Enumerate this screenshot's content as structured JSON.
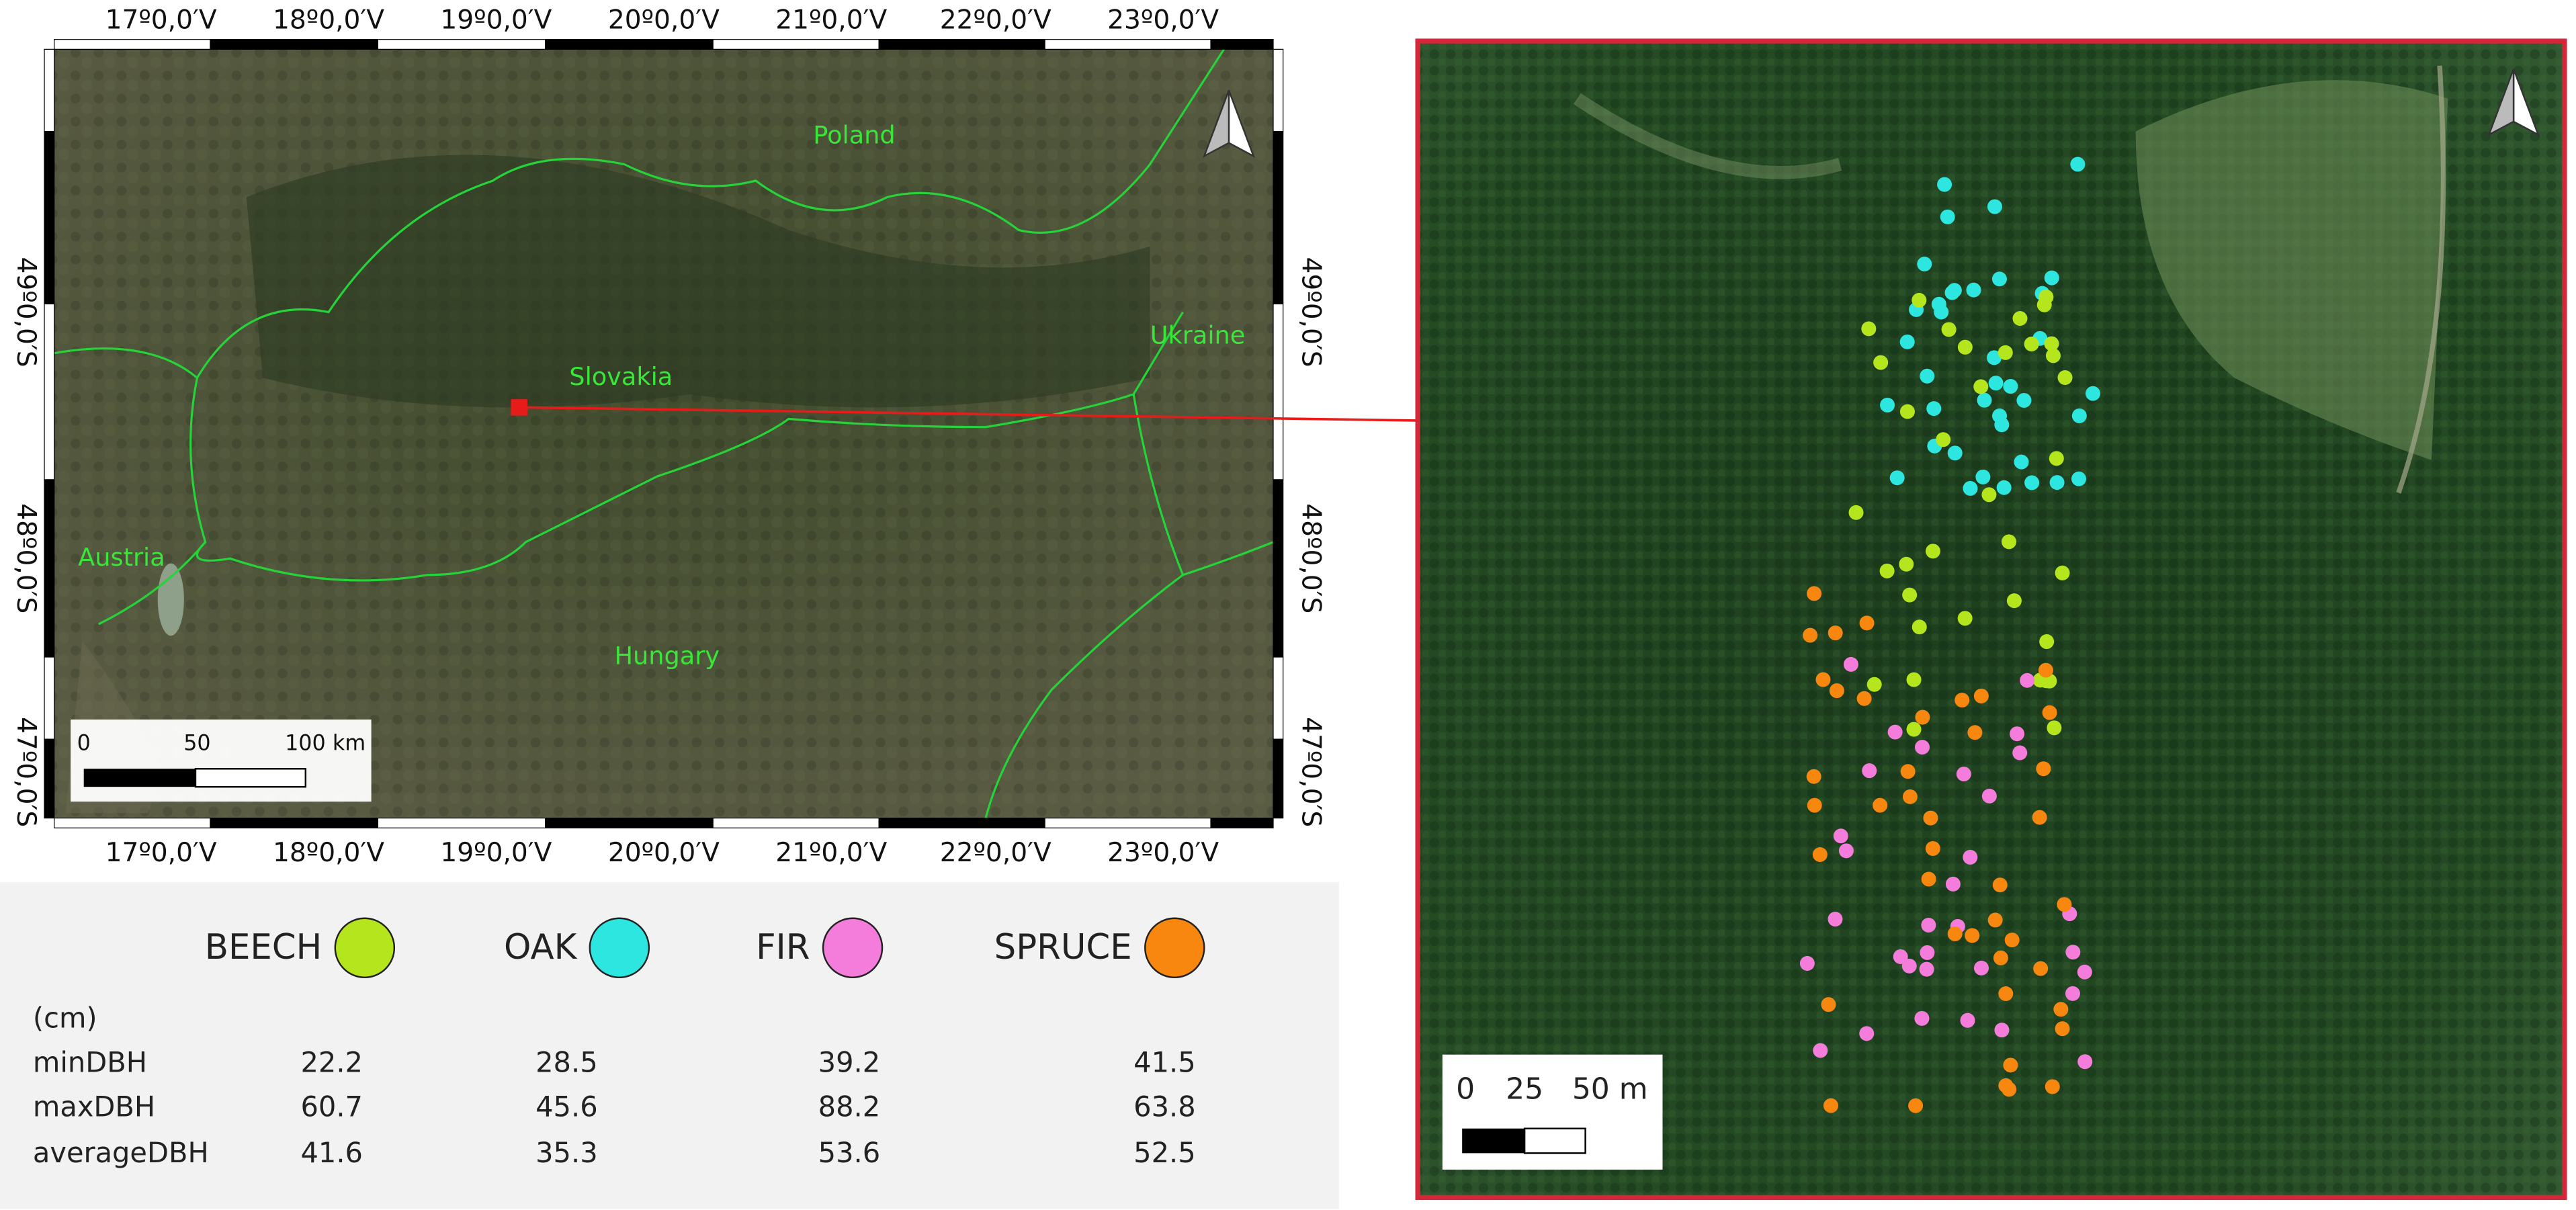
{
  "map_overview": {
    "top_longitude_labels": [
      "17º0,0′V",
      "18º0,0′V",
      "19º0,0′V",
      "20º0,0′V",
      "21º0,0′V",
      "22º0,0′V",
      "23º0,0′V"
    ],
    "bottom_longitude_labels": [
      "17º0,0′V",
      "18º0,0′V",
      "19º0,0′V",
      "20º0,0′V",
      "21º0,0′V",
      "22º0,0′V",
      "23º0,0′V"
    ],
    "left_latitude_labels": [
      "49º0,0′S",
      "48º0,0′S",
      "47º0,0′S"
    ],
    "right_latitude_labels": [
      "49º0,0′S",
      "48º0,0′S",
      "47º0,0′S"
    ],
    "countries": [
      "Poland",
      "Slovakia",
      "Ukraine",
      "Austria",
      "Hungary"
    ],
    "scale_bar": [
      "0",
      "50",
      "100 km"
    ]
  },
  "legend": {
    "species": [
      {
        "name": "BEECH",
        "color": "#b5e61d"
      },
      {
        "name": "OAK",
        "color": "#2ee6e0"
      },
      {
        "name": "FIR",
        "color": "#f47ddb"
      },
      {
        "name": "SPRUCE",
        "color": "#f7870f"
      }
    ],
    "unit": "(cm)",
    "rows": [
      {
        "label": "minDBH",
        "values": [
          22.2,
          28.5,
          39.2,
          41.5
        ]
      },
      {
        "label": "maxDBH",
        "values": [
          60.7,
          45.6,
          88.2,
          63.8
        ]
      },
      {
        "label": "averageDBH",
        "values": [
          41.6,
          35.3,
          53.6,
          52.5
        ]
      }
    ]
  },
  "detail_map": {
    "scale_bar": [
      "0",
      "25",
      "50 m"
    ]
  }
}
